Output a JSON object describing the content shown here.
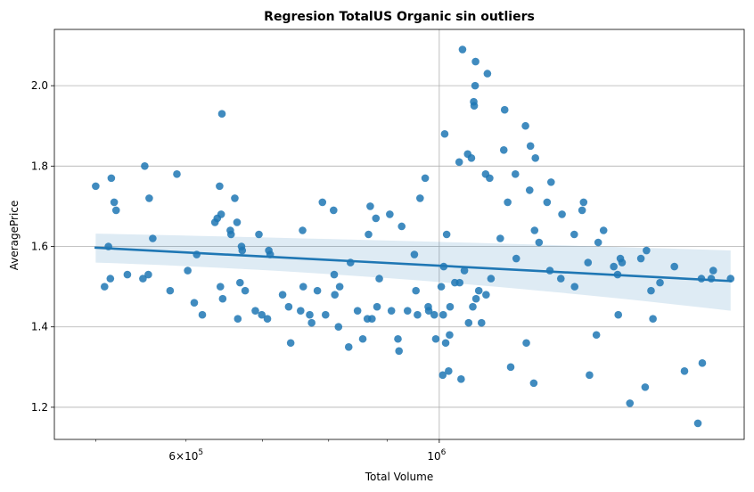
{
  "chart_data": {
    "type": "scatter",
    "title": "Regresion TotalUS Organic sin outliers",
    "xlabel": "Total Volume",
    "ylabel": "AveragePrice",
    "x_scale": "log",
    "xlim": [
      460000,
      1850000
    ],
    "ylim": [
      1.12,
      2.14
    ],
    "grid": true,
    "x_major_ticks": [
      {
        "value": 1000000,
        "base": "10",
        "exp": "6"
      }
    ],
    "x_minor_ticks": [
      {
        "value": 500000,
        "label": ""
      },
      {
        "value": 600000,
        "mantissa": "6",
        "times": "×",
        "base": "10",
        "exp": "5"
      },
      {
        "value": 700000,
        "label": ""
      },
      {
        "value": 800000,
        "label": ""
      },
      {
        "value": 900000,
        "label": ""
      },
      {
        "value": 2000000,
        "label": ""
      }
    ],
    "y_ticks": [
      {
        "value": 1.2,
        "label": "1.2"
      },
      {
        "value": 1.4,
        "label": "1.4"
      },
      {
        "value": 1.6,
        "label": "1.6"
      },
      {
        "value": 1.8,
        "label": "1.8"
      },
      {
        "value": 2.0,
        "label": "2.0"
      }
    ],
    "regression": {
      "x": [
        500000,
        1800000
      ],
      "y": [
        1.597,
        1.514
      ],
      "ci_upper": [
        1.632,
        1.59
      ],
      "ci_lower": [
        1.56,
        1.44
      ]
    },
    "points_color": "#1f77b4",
    "points": [
      [
        500000,
        1.75
      ],
      [
        509000,
        1.5
      ],
      [
        513000,
        1.6
      ],
      [
        515000,
        1.52
      ],
      [
        516000,
        1.77
      ],
      [
        519000,
        1.71
      ],
      [
        521000,
        1.69
      ],
      [
        533000,
        1.53
      ],
      [
        550000,
        1.52
      ],
      [
        552000,
        1.8
      ],
      [
        556000,
        1.53
      ],
      [
        557000,
        1.72
      ],
      [
        561000,
        1.62
      ],
      [
        581000,
        1.49
      ],
      [
        589000,
        1.78
      ],
      [
        602000,
        1.54
      ],
      [
        610000,
        1.46
      ],
      [
        613000,
        1.58
      ],
      [
        620000,
        1.43
      ],
      [
        636000,
        1.66
      ],
      [
        639000,
        1.67
      ],
      [
        642000,
        1.75
      ],
      [
        643000,
        1.5
      ],
      [
        644000,
        1.68
      ],
      [
        645000,
        1.93
      ],
      [
        646000,
        1.47
      ],
      [
        656000,
        1.64
      ],
      [
        657000,
        1.63
      ],
      [
        662000,
        1.72
      ],
      [
        665000,
        1.66
      ],
      [
        666000,
        1.42
      ],
      [
        669000,
        1.51
      ],
      [
        671000,
        1.6
      ],
      [
        672000,
        1.59
      ],
      [
        676000,
        1.49
      ],
      [
        690000,
        1.44
      ],
      [
        695000,
        1.63
      ],
      [
        699000,
        1.43
      ],
      [
        707000,
        1.42
      ],
      [
        709000,
        1.59
      ],
      [
        711000,
        1.58
      ],
      [
        729000,
        1.48
      ],
      [
        738000,
        1.45
      ],
      [
        741000,
        1.36
      ],
      [
        756000,
        1.44
      ],
      [
        759000,
        1.64
      ],
      [
        760000,
        1.5
      ],
      [
        770000,
        1.43
      ],
      [
        773000,
        1.41
      ],
      [
        782000,
        1.49
      ],
      [
        790000,
        1.71
      ],
      [
        795000,
        1.43
      ],
      [
        808000,
        1.69
      ],
      [
        809000,
        1.53
      ],
      [
        810000,
        1.48
      ],
      [
        816000,
        1.4
      ],
      [
        818000,
        1.5
      ],
      [
        833000,
        1.35
      ],
      [
        836000,
        1.56
      ],
      [
        848000,
        1.44
      ],
      [
        857000,
        1.37
      ],
      [
        865000,
        1.42
      ],
      [
        867000,
        1.63
      ],
      [
        870000,
        1.7
      ],
      [
        873000,
        1.42
      ],
      [
        880000,
        1.67
      ],
      [
        882000,
        1.45
      ],
      [
        886000,
        1.52
      ],
      [
        905000,
        1.68
      ],
      [
        908000,
        1.44
      ],
      [
        920000,
        1.37
      ],
      [
        922000,
        1.34
      ],
      [
        927000,
        1.65
      ],
      [
        938000,
        1.44
      ],
      [
        951000,
        1.58
      ],
      [
        954000,
        1.49
      ],
      [
        957000,
        1.43
      ],
      [
        962000,
        1.72
      ],
      [
        972000,
        1.77
      ],
      [
        978000,
        1.45
      ],
      [
        979000,
        1.44
      ],
      [
        990000,
        1.43
      ],
      [
        993000,
        1.37
      ],
      [
        1004000,
        1.5
      ],
      [
        1007000,
        1.28
      ],
      [
        1008000,
        1.43
      ],
      [
        1009000,
        1.55
      ],
      [
        1011000,
        1.88
      ],
      [
        1013000,
        1.36
      ],
      [
        1015000,
        1.63
      ],
      [
        1019000,
        1.29
      ],
      [
        1021000,
        1.38
      ],
      [
        1022000,
        1.45
      ],
      [
        1032000,
        1.51
      ],
      [
        1041000,
        1.81
      ],
      [
        1042000,
        1.51
      ],
      [
        1045000,
        1.27
      ],
      [
        1048000,
        2.09
      ],
      [
        1052000,
        1.54
      ],
      [
        1059000,
        1.83
      ],
      [
        1061000,
        1.41
      ],
      [
        1067000,
        1.82
      ],
      [
        1070000,
        1.45
      ],
      [
        1072000,
        1.96
      ],
      [
        1073000,
        1.95
      ],
      [
        1075000,
        2.0
      ],
      [
        1076000,
        2.06
      ],
      [
        1077000,
        1.47
      ],
      [
        1083000,
        1.49
      ],
      [
        1089000,
        1.41
      ],
      [
        1098000,
        1.78
      ],
      [
        1099000,
        1.48
      ],
      [
        1102000,
        2.03
      ],
      [
        1107000,
        1.77
      ],
      [
        1110000,
        1.52
      ],
      [
        1131000,
        1.62
      ],
      [
        1139000,
        1.84
      ],
      [
        1141000,
        1.94
      ],
      [
        1148000,
        1.71
      ],
      [
        1155000,
        1.3
      ],
      [
        1166000,
        1.78
      ],
      [
        1168000,
        1.57
      ],
      [
        1190000,
        1.9
      ],
      [
        1192000,
        1.36
      ],
      [
        1200000,
        1.74
      ],
      [
        1202000,
        1.85
      ],
      [
        1210000,
        1.26
      ],
      [
        1212000,
        1.64
      ],
      [
        1214000,
        1.82
      ],
      [
        1223000,
        1.61
      ],
      [
        1243000,
        1.71
      ],
      [
        1250000,
        1.54
      ],
      [
        1253000,
        1.76
      ],
      [
        1278000,
        1.52
      ],
      [
        1281000,
        1.68
      ],
      [
        1313000,
        1.63
      ],
      [
        1314000,
        1.5
      ],
      [
        1334000,
        1.69
      ],
      [
        1338000,
        1.71
      ],
      [
        1350000,
        1.56
      ],
      [
        1354000,
        1.28
      ],
      [
        1373000,
        1.38
      ],
      [
        1378000,
        1.61
      ],
      [
        1393000,
        1.64
      ],
      [
        1422000,
        1.55
      ],
      [
        1433000,
        1.53
      ],
      [
        1435000,
        1.43
      ],
      [
        1441000,
        1.57
      ],
      [
        1446000,
        1.56
      ],
      [
        1469000,
        1.21
      ],
      [
        1502000,
        1.57
      ],
      [
        1515000,
        1.25
      ],
      [
        1519000,
        1.59
      ],
      [
        1533000,
        1.49
      ],
      [
        1539000,
        1.42
      ],
      [
        1561000,
        1.51
      ],
      [
        1607000,
        1.55
      ],
      [
        1640000,
        1.29
      ],
      [
        1685000,
        1.16
      ],
      [
        1697000,
        1.52
      ],
      [
        1700000,
        1.31
      ],
      [
        1731000,
        1.52
      ],
      [
        1738000,
        1.54
      ],
      [
        1800000,
        1.52
      ]
    ]
  }
}
